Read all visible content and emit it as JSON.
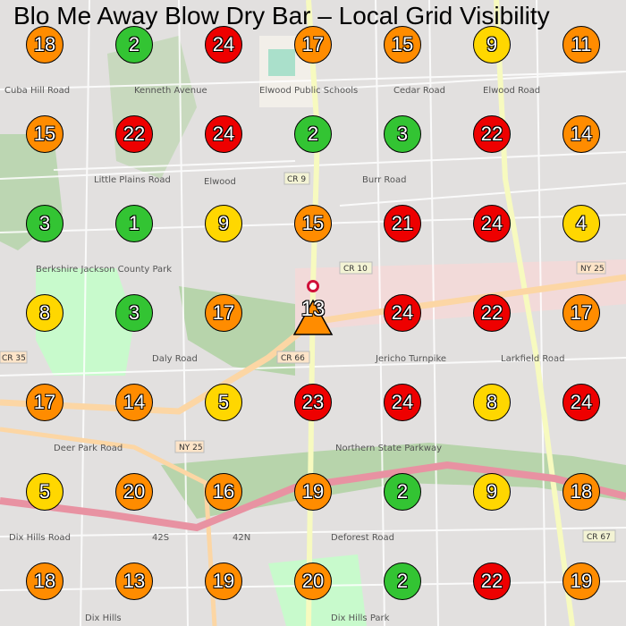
{
  "title": "Blo Me Away Blow Dry Bar – Local Grid Visibility",
  "colors": {
    "green": "#33c433",
    "yellow": "#ffd700",
    "orange": "#ff8c00",
    "red": "#ee0000",
    "business_pin": "#d0103a"
  },
  "legend_rule": {
    "green": "1-3",
    "yellow": "4-10",
    "orange": "11-20",
    "red": "21+"
  },
  "business_marker": {
    "icon": "map-pin-icon",
    "rank": 13,
    "shape": "triangle"
  },
  "grid": [
    [
      18,
      2,
      24,
      17,
      15,
      9,
      11
    ],
    [
      15,
      22,
      24,
      2,
      3,
      22,
      14
    ],
    [
      3,
      1,
      9,
      15,
      21,
      24,
      4
    ],
    [
      8,
      3,
      17,
      13,
      24,
      22,
      17
    ],
    [
      17,
      14,
      5,
      23,
      24,
      8,
      24
    ],
    [
      5,
      20,
      16,
      19,
      2,
      9,
      18
    ],
    [
      18,
      13,
      19,
      20,
      2,
      22,
      19
    ]
  ],
  "map_labels": {
    "elwood_schools": "Elwood Public Schools",
    "cedar_road": "Cedar Road",
    "kenneth_avenue": "Kenneth Avenue",
    "cuba_hill_road": "Cuba Hill Road",
    "little_plains_road": "Little Plains Road",
    "cr9": "CR 9",
    "burr_road": "Burr Road",
    "elwood_road": "Elwood Road",
    "elwood": "Elwood",
    "cr10": "CR 10",
    "ny25_east": "NY 25",
    "jericho_turnpike": "Jericho Turnpike",
    "larkfield_road": "Larkfield Road",
    "daly_road": "Daly Road",
    "cr66": "CR 66",
    "cr35": "CR 35",
    "ny25_west": "NY 25",
    "berkshire_park": "Berkshire Jackson County Park",
    "deer_park_road": "Deer Park Road",
    "northern_state_parkway": "Northern State Parkway",
    "42n": "42N",
    "42s": "42S",
    "deforest_road": "Deforest Road",
    "dix_hills_road": "Dix Hills Road",
    "dix_hills_park": "Dix Hills Park",
    "dix_hills": "Dix Hills",
    "cr67": "CR 67"
  }
}
